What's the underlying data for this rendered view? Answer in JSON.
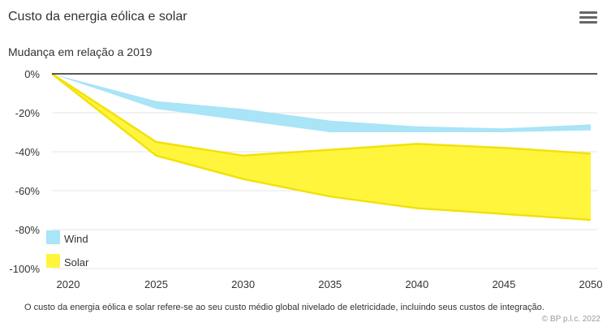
{
  "header": {
    "title": "Custo da energia eólica e solar",
    "menu_icon": "hamburger-menu-icon"
  },
  "footer": {
    "note": "O custo da energia eólica e solar refere-se ao seu custo médio global nivelado de eletricidade, incluindo seus custos de integração.",
    "credit": "© BP p.l.c. 2022"
  },
  "chart_data": {
    "type": "area",
    "title": "Custo da energia eólica e solar",
    "ylabel": "Mudança em relação a 2019",
    "x": [
      2019,
      2025,
      2030,
      2035,
      2040,
      2045,
      2050
    ],
    "x_ticks": [
      "2020",
      "2025",
      "2030",
      "2035",
      "2040",
      "2045",
      "2050"
    ],
    "y_ticks": [
      "0%",
      "-20%",
      "-40%",
      "-60%",
      "-80%",
      "-100%"
    ],
    "ylim": [
      -100,
      0
    ],
    "series": [
      {
        "name": "Wind",
        "color": "#a9e4f7",
        "upper": [
          0,
          -14,
          -18,
          -24,
          -27,
          -28,
          -26
        ],
        "lower": [
          0,
          -18,
          -24,
          -30,
          -30,
          -30,
          -29
        ]
      },
      {
        "name": "Solar",
        "color": "#fff53d",
        "upper": [
          0,
          -35,
          -42,
          -39,
          -36,
          -38,
          -41
        ],
        "lower": [
          0,
          -42,
          -54,
          -63,
          -69,
          -72,
          -75
        ]
      }
    ],
    "legend": [
      "Wind",
      "Solar"
    ],
    "legend_position": "bottom-left"
  }
}
